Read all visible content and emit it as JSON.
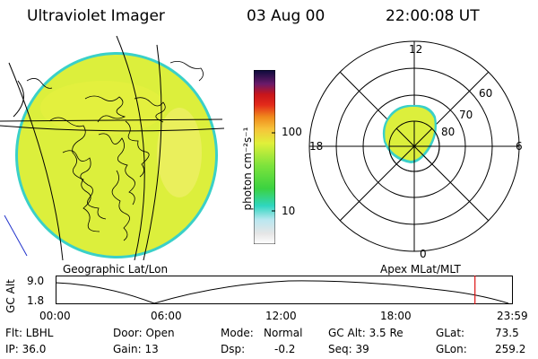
{
  "header": {
    "instrument": "Ultraviolet Imager",
    "date": "03 Aug 00",
    "time": "22:00:08 UT"
  },
  "colorbar": {
    "label": "photon cm⁻²s⁻¹",
    "ticks": [
      "100",
      "10"
    ]
  },
  "polar_plot": {
    "mlt_labels": {
      "top": "12",
      "left": "18",
      "right": "6",
      "bottom": "0"
    },
    "lat_labels": [
      "60",
      "70",
      "80"
    ]
  },
  "panel_labels": {
    "left": "Geographic Lat/Lon",
    "right": "Apex MLat/MLT"
  },
  "altitude_strip": {
    "ylabel": "GC Alt",
    "ymax": "9.0",
    "ymin": "1.8",
    "time_ticks": [
      "00:00",
      "06:00",
      "12:00",
      "18:00",
      "23:59"
    ],
    "current_time_fraction": 0.917
  },
  "info": {
    "row1": {
      "filter": "Flt: LBHL",
      "door": "Door: Open",
      "mode_label": "Mode:",
      "mode_value": "Normal",
      "gc_alt": "GC Alt: 3.5 Re",
      "glat": "GLat:",
      "glat_value": "73.5"
    },
    "row2": {
      "ip": "IP: 36.0",
      "gain": "Gain: 13",
      "dsp_label": "Dsp:",
      "dsp_value": "-0.2",
      "seq": "Seq: 39",
      "glon": "GLon:",
      "glon_value": "259.2"
    }
  },
  "colors": {
    "aurora": "#d8ee3a",
    "edge": "#3ad0c8",
    "marker": "#d11"
  }
}
